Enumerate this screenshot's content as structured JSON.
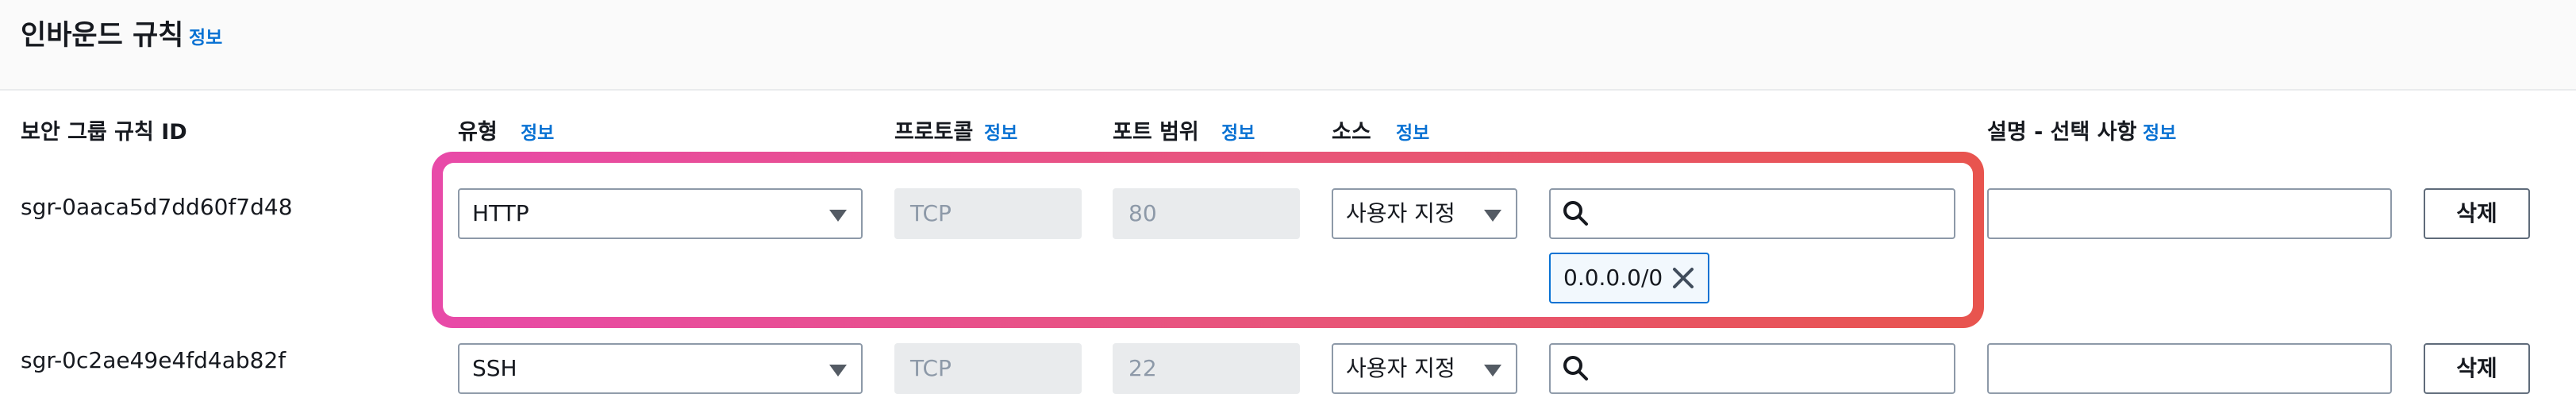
{
  "section": {
    "title": "인바운드 규칙",
    "info": "정보"
  },
  "columns": {
    "rule_id": "보안 그룹 규칙 ID",
    "type": "유형",
    "type_info": "정보",
    "protocol": "프로토콜",
    "protocol_info": "정보",
    "port_range": "포트 범위",
    "port_range_info": "정보",
    "source": "소스",
    "source_info": "정보",
    "description": "설명 - 선택 사항",
    "description_info": "정보"
  },
  "rules": [
    {
      "id": "sgr-0aaca5d7dd60f7d48",
      "type": "HTTP",
      "protocol": "TCP",
      "port": "80",
      "source_type": "사용자 지정",
      "cidr_token": "0.0.0.0/0",
      "description": "",
      "delete_label": "삭제"
    },
    {
      "id": "sgr-0c2ae49e4fd4ab82f",
      "type": "SSH",
      "protocol": "TCP",
      "port": "22",
      "source_type": "사용자 지정",
      "description": "",
      "delete_label": "삭제"
    }
  ],
  "colors": {
    "accent": "#0972d3",
    "highlight_start": "#e84aa8",
    "highlight_end": "#e8544e"
  }
}
